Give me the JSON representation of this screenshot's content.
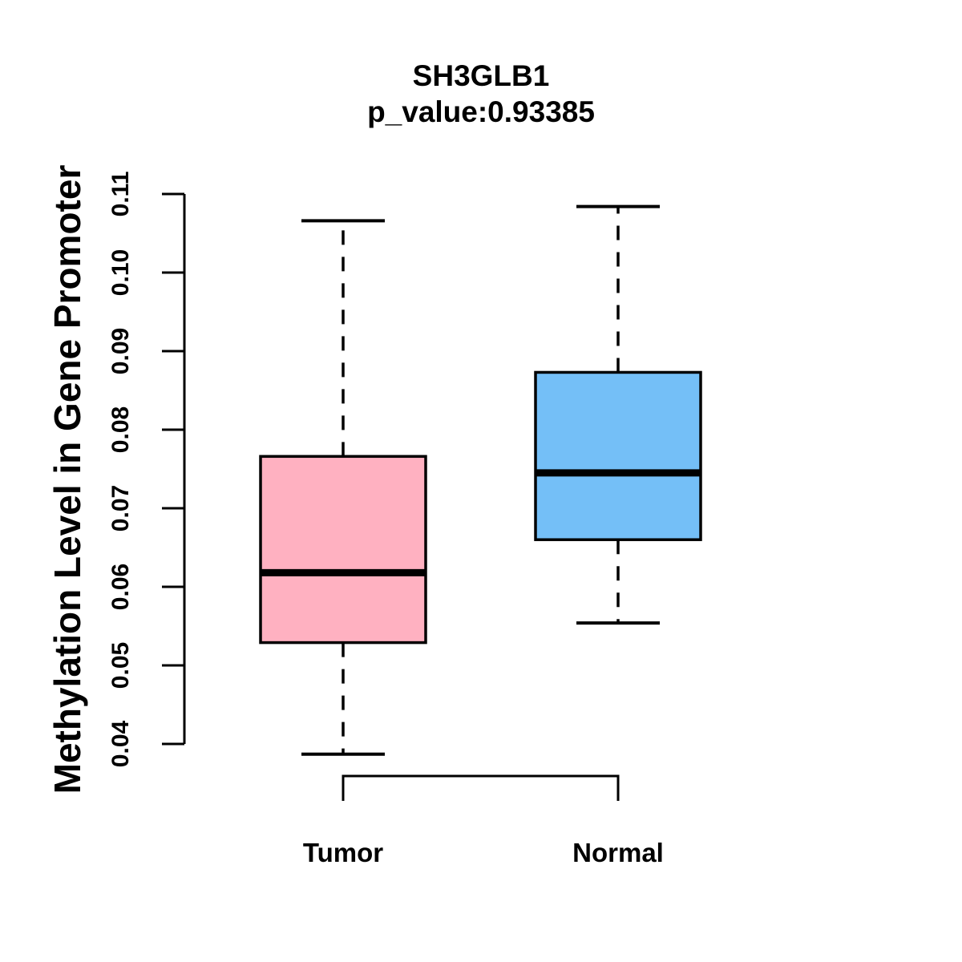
{
  "title": "SH3GLB1",
  "subtitle": "p_value:0.93385",
  "ylabel": "Methylation Level in Gene Promoter",
  "colors": {
    "tumor_fill": "#FFB1C1",
    "normal_fill": "#74BFF7",
    "line": "#000000",
    "background": "#FFFFFF"
  },
  "chart_data": {
    "type": "boxplot",
    "title": "SH3GLB1",
    "subtitle": "p_value:0.93385",
    "ylabel": "Methylation Level in Gene Promoter",
    "xlabel": "",
    "categories": [
      "Tumor",
      "Normal"
    ],
    "series": [
      {
        "name": "Tumor",
        "lower_whisker": 0.0387,
        "q1": 0.0529,
        "median": 0.0618,
        "q3": 0.0766,
        "upper_whisker": 0.1066,
        "color": "#FFB1C1"
      },
      {
        "name": "Normal",
        "lower_whisker": 0.0554,
        "q1": 0.066,
        "median": 0.0745,
        "q3": 0.0873,
        "upper_whisker": 0.1084,
        "color": "#74BFF7"
      }
    ],
    "ylim": [
      0.04,
      0.11
    ],
    "yticks": [
      0.04,
      0.05,
      0.06,
      0.07,
      0.08,
      0.09,
      0.1,
      0.11
    ],
    "ytick_labels": [
      "0.04",
      "0.05",
      "0.06",
      "0.07",
      "0.08",
      "0.09",
      "0.10",
      "0.11"
    ],
    "grid": false,
    "legend": "none",
    "comparison_bracket": {
      "from": "Tumor",
      "to": "Normal"
    }
  }
}
